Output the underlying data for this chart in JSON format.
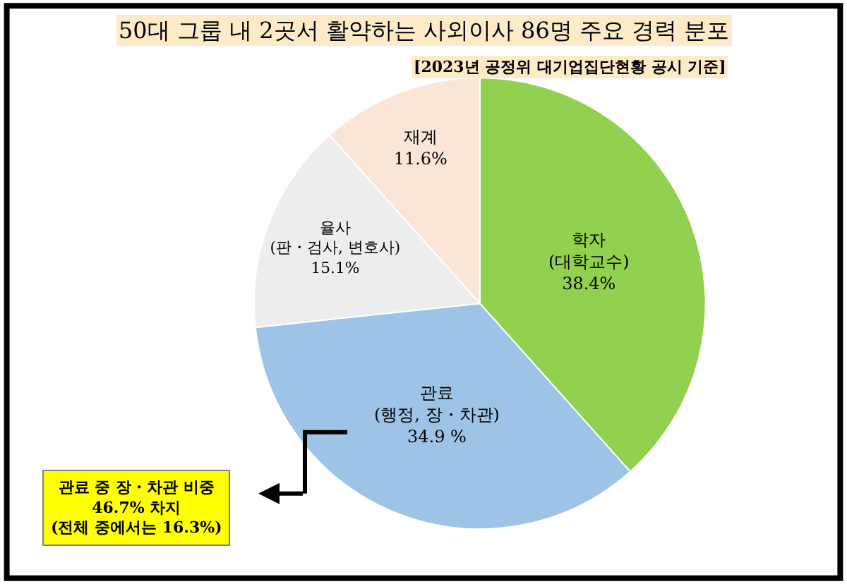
{
  "chart_data": {
    "type": "pie",
    "title": "50대 그룹 내 2곳서 활약하는 사외이사 86명 주요 경력 분포",
    "subtitle": "[2023년 공정위 대기업집단현황 공시 기준]",
    "categories": [
      "학자\n(대학교수)",
      "관료\n(행정, 장・차관)",
      "율사\n(판・검사, 변호사)",
      "재계"
    ],
    "values": [
      38.4,
      34.9,
      15.1,
      11.6
    ],
    "value_labels": [
      "38.4%",
      "34.9 %",
      "15.1%",
      "11.6%"
    ],
    "colors": [
      "#92d050",
      "#9dc3e6",
      "#ededed",
      "#fbe5d6"
    ],
    "annotations": [
      "관료 중 장・차관 비중\n46.7% 차지\n(전체 중에서는 16.3%)"
    ],
    "legend": false
  }
}
